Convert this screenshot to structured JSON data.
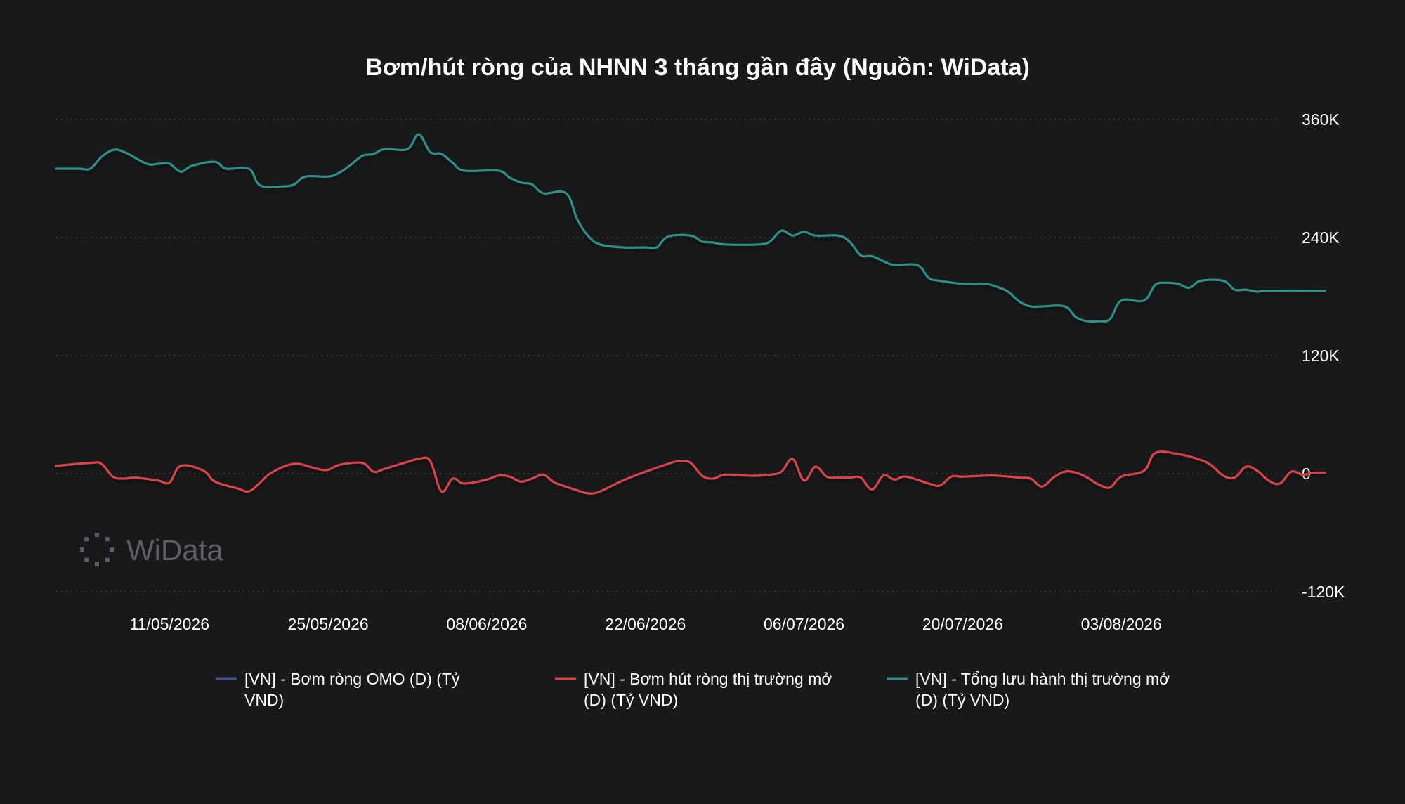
{
  "chart_data": {
    "type": "line",
    "title": "Bơm/hút ròng của NHNN 3 tháng gần đây (Nguồn: WiData)",
    "xlabel": "",
    "ylabel": "",
    "x_range": [
      "2026-05-01",
      "2026-08-17"
    ],
    "ylim": [
      -120000,
      360000
    ],
    "y_ticks": [
      360000,
      240000,
      120000,
      0,
      -120000
    ],
    "y_tick_labels": [
      "360K",
      "240K",
      "120K",
      "0",
      "-120K"
    ],
    "x_tick_labels": [
      "11/05/2026",
      "25/05/2026",
      "08/06/2026",
      "22/06/2026",
      "06/07/2026",
      "20/07/2026",
      "03/08/2026"
    ],
    "grid": true,
    "legend_position": "bottom",
    "series": [
      {
        "name": "[VN] - Bơm ròng OMO (D) (Tỷ VND)",
        "color": "#4b4e9c",
        "points": []
      },
      {
        "name": "[VN] - Bơm hút ròng thị trường mở (D) (Tỷ VND)",
        "color": "#d9434a",
        "points": [
          [
            "2026-05-01",
            8000
          ],
          [
            "2026-05-04",
            11000
          ],
          [
            "2026-05-05",
            10000
          ],
          [
            "2026-05-06",
            -3000
          ],
          [
            "2026-05-07",
            -5000
          ],
          [
            "2026-05-08",
            -4000
          ],
          [
            "2026-05-10",
            -7000
          ],
          [
            "2026-05-11",
            -9000
          ],
          [
            "2026-05-12",
            8000
          ],
          [
            "2026-05-14",
            3000
          ],
          [
            "2026-05-15",
            -8000
          ],
          [
            "2026-05-17",
            -15000
          ],
          [
            "2026-05-18",
            -18000
          ],
          [
            "2026-05-19",
            -9000
          ],
          [
            "2026-05-20",
            1000
          ],
          [
            "2026-05-22",
            10000
          ],
          [
            "2026-05-24",
            5000
          ],
          [
            "2026-05-25",
            4000
          ],
          [
            "2026-05-26",
            9000
          ],
          [
            "2026-05-28",
            11000
          ],
          [
            "2026-05-29",
            2000
          ],
          [
            "2026-05-30",
            5000
          ],
          [
            "2026-06-01",
            12000
          ],
          [
            "2026-06-02",
            15000
          ],
          [
            "2026-06-03",
            13000
          ],
          [
            "2026-06-04",
            -18000
          ],
          [
            "2026-06-05",
            -5000
          ],
          [
            "2026-06-06",
            -10000
          ],
          [
            "2026-06-08",
            -6000
          ],
          [
            "2026-06-09",
            -2000
          ],
          [
            "2026-06-10",
            -3000
          ],
          [
            "2026-06-11",
            -8000
          ],
          [
            "2026-06-12",
            -5000
          ],
          [
            "2026-06-13",
            -1000
          ],
          [
            "2026-06-14",
            -9000
          ],
          [
            "2026-06-16",
            -17000
          ],
          [
            "2026-06-17",
            -20000
          ],
          [
            "2026-06-18",
            -18000
          ],
          [
            "2026-06-20",
            -7000
          ],
          [
            "2026-06-22",
            2000
          ],
          [
            "2026-06-24",
            10000
          ],
          [
            "2026-06-25",
            13000
          ],
          [
            "2026-06-26",
            11000
          ],
          [
            "2026-06-27",
            -2000
          ],
          [
            "2026-06-28",
            -5000
          ],
          [
            "2026-06-29",
            -1000
          ],
          [
            "2026-07-01",
            -2000
          ],
          [
            "2026-07-02",
            -2000
          ],
          [
            "2026-07-03",
            -1000
          ],
          [
            "2026-07-04",
            2000
          ],
          [
            "2026-07-05",
            15000
          ],
          [
            "2026-07-06",
            -7000
          ],
          [
            "2026-07-07",
            7000
          ],
          [
            "2026-07-08",
            -3000
          ],
          [
            "2026-07-09",
            -4000
          ],
          [
            "2026-07-10",
            -4000
          ],
          [
            "2026-07-11",
            -4000
          ],
          [
            "2026-07-12",
            -16000
          ],
          [
            "2026-07-13",
            -2000
          ],
          [
            "2026-07-14",
            -6000
          ],
          [
            "2026-07-15",
            -3000
          ],
          [
            "2026-07-17",
            -10000
          ],
          [
            "2026-07-18",
            -12000
          ],
          [
            "2026-07-19",
            -3000
          ],
          [
            "2026-07-20",
            -3000
          ],
          [
            "2026-07-22",
            -2000
          ],
          [
            "2026-07-23",
            -2000
          ],
          [
            "2026-07-25",
            -4000
          ],
          [
            "2026-07-26",
            -5000
          ],
          [
            "2026-07-27",
            -13000
          ],
          [
            "2026-07-28",
            -4000
          ],
          [
            "2026-07-29",
            2000
          ],
          [
            "2026-07-30",
            1000
          ],
          [
            "2026-07-31",
            -4000
          ],
          [
            "2026-08-01",
            -11000
          ],
          [
            "2026-08-02",
            -14000
          ],
          [
            "2026-08-03",
            -3000
          ],
          [
            "2026-08-05",
            3000
          ],
          [
            "2026-08-06",
            21000
          ],
          [
            "2026-08-08",
            20000
          ],
          [
            "2026-08-10",
            14000
          ],
          [
            "2026-08-11",
            8000
          ],
          [
            "2026-08-12",
            -2000
          ],
          [
            "2026-08-13",
            -4000
          ],
          [
            "2026-08-14",
            7000
          ],
          [
            "2026-08-15",
            3000
          ],
          [
            "2026-08-16",
            -7000
          ],
          [
            "2026-08-17",
            -10000
          ],
          [
            "2026-08-18",
            2000
          ],
          [
            "2026-08-19",
            -1000
          ],
          [
            "2026-08-20",
            1000
          ],
          [
            "2026-08-21",
            1000
          ]
        ]
      },
      {
        "name": "[VN] - Tổng lưu hành thị trường mở (D) (Tỷ VND)",
        "color": "#2e8f84",
        "points": [
          [
            "2026-05-01",
            310000
          ],
          [
            "2026-05-03",
            310000
          ],
          [
            "2026-05-04",
            310000
          ],
          [
            "2026-05-05",
            322000
          ],
          [
            "2026-05-06",
            329000
          ],
          [
            "2026-05-07",
            327000
          ],
          [
            "2026-05-09",
            315000
          ],
          [
            "2026-05-10",
            315000
          ],
          [
            "2026-05-11",
            315000
          ],
          [
            "2026-05-12",
            307000
          ],
          [
            "2026-05-13",
            313000
          ],
          [
            "2026-05-15",
            317000
          ],
          [
            "2026-05-16",
            310000
          ],
          [
            "2026-05-18",
            310000
          ],
          [
            "2026-05-19",
            293000
          ],
          [
            "2026-05-21",
            292000
          ],
          [
            "2026-05-22",
            294000
          ],
          [
            "2026-05-23",
            302000
          ],
          [
            "2026-05-25",
            302000
          ],
          [
            "2026-05-26",
            306000
          ],
          [
            "2026-05-27",
            314000
          ],
          [
            "2026-05-28",
            323000
          ],
          [
            "2026-05-29",
            325000
          ],
          [
            "2026-05-30",
            330000
          ],
          [
            "2026-06-01",
            330000
          ],
          [
            "2026-06-02",
            345000
          ],
          [
            "2026-06-03",
            327000
          ],
          [
            "2026-06-04",
            325000
          ],
          [
            "2026-06-05",
            316000
          ],
          [
            "2026-06-06",
            308000
          ],
          [
            "2026-06-09",
            308000
          ],
          [
            "2026-06-10",
            301000
          ],
          [
            "2026-06-11",
            296000
          ],
          [
            "2026-06-12",
            294000
          ],
          [
            "2026-06-13",
            285000
          ],
          [
            "2026-06-15",
            285000
          ],
          [
            "2026-06-16",
            258000
          ],
          [
            "2026-06-17",
            241000
          ],
          [
            "2026-06-18",
            233000
          ],
          [
            "2026-06-20",
            230000
          ],
          [
            "2026-06-22",
            230000
          ],
          [
            "2026-06-23",
            230000
          ],
          [
            "2026-06-24",
            241000
          ],
          [
            "2026-06-26",
            242000
          ],
          [
            "2026-06-27",
            236000
          ],
          [
            "2026-06-28",
            235000
          ],
          [
            "2026-06-29",
            233000
          ],
          [
            "2026-07-02",
            233000
          ],
          [
            "2026-07-03",
            236000
          ],
          [
            "2026-07-04",
            247000
          ],
          [
            "2026-07-05",
            242000
          ],
          [
            "2026-07-06",
            246000
          ],
          [
            "2026-07-07",
            242000
          ],
          [
            "2026-07-09",
            242000
          ],
          [
            "2026-07-10",
            236000
          ],
          [
            "2026-07-11",
            222000
          ],
          [
            "2026-07-12",
            221000
          ],
          [
            "2026-07-13",
            216000
          ],
          [
            "2026-07-14",
            212000
          ],
          [
            "2026-07-16",
            212000
          ],
          [
            "2026-07-17",
            199000
          ],
          [
            "2026-07-18",
            196000
          ],
          [
            "2026-07-20",
            193000
          ],
          [
            "2026-07-22",
            193000
          ],
          [
            "2026-07-23",
            190000
          ],
          [
            "2026-07-24",
            185000
          ],
          [
            "2026-07-25",
            175000
          ],
          [
            "2026-07-26",
            170000
          ],
          [
            "2026-07-27",
            170000
          ],
          [
            "2026-07-29",
            170000
          ],
          [
            "2026-07-30",
            159000
          ],
          [
            "2026-07-31",
            155000
          ],
          [
            "2026-08-01",
            155000
          ],
          [
            "2026-08-02",
            157000
          ],
          [
            "2026-08-03",
            176000
          ],
          [
            "2026-08-05",
            176000
          ],
          [
            "2026-08-06",
            192000
          ],
          [
            "2026-08-07",
            194000
          ],
          [
            "2026-08-08",
            193000
          ],
          [
            "2026-08-09",
            189000
          ],
          [
            "2026-08-10",
            196000
          ],
          [
            "2026-08-12",
            196000
          ],
          [
            "2026-08-13",
            187000
          ],
          [
            "2026-08-14",
            187000
          ],
          [
            "2026-08-15",
            185000
          ],
          [
            "2026-08-16",
            186000
          ],
          [
            "2026-08-21",
            186000
          ]
        ]
      }
    ]
  },
  "watermark": {
    "text": "WiData",
    "icon": "widata-dots-logo-icon"
  }
}
